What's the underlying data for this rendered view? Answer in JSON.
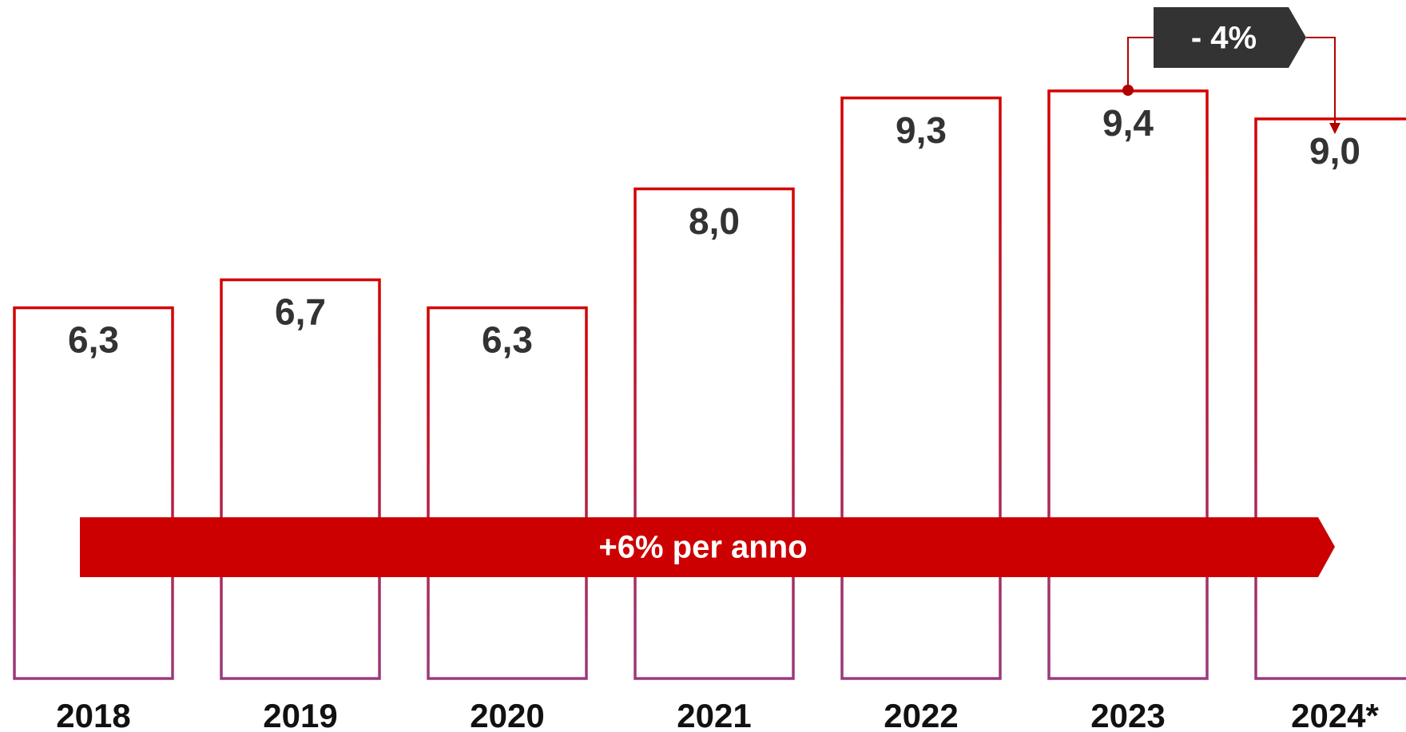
{
  "chart_data": {
    "type": "bar",
    "categories": [
      "2018",
      "2019",
      "2020",
      "2021",
      "2022",
      "2023",
      "2024*"
    ],
    "values": [
      6.3,
      6.7,
      6.3,
      8.0,
      9.3,
      9.4,
      9.0
    ],
    "value_labels": [
      "6,3",
      "6,7",
      "6,3",
      "8,0",
      "9,3",
      "9,4",
      "9,0"
    ],
    "ylim": [
      1,
      10.7
    ],
    "color": "#cc0000",
    "annotations": [
      "+6% per anno",
      "- 4%"
    ]
  }
}
